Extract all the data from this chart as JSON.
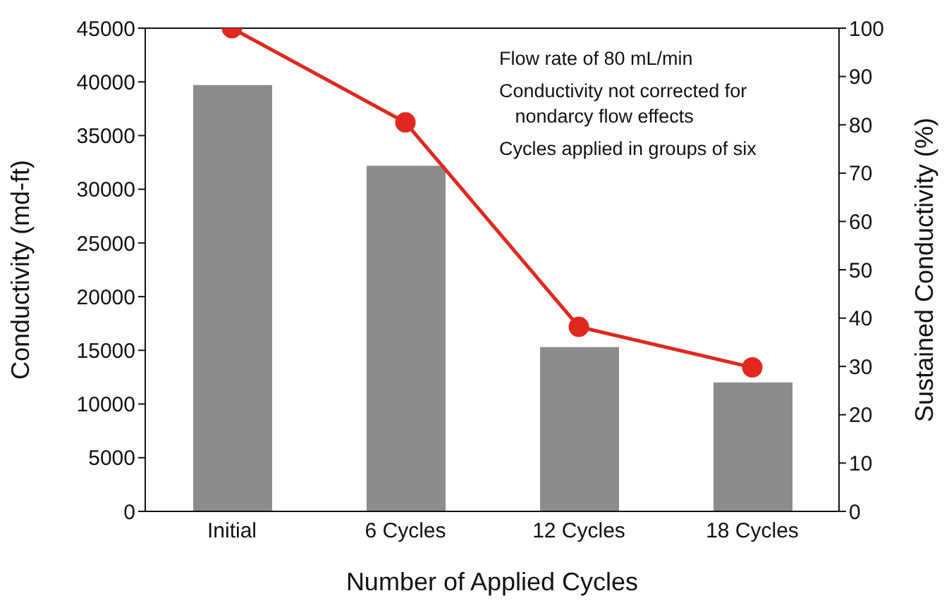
{
  "chart_data": {
    "type": "bar",
    "xlabel": "Number of Applied Cycles",
    "ylabel": "Conductivity (md-ft)",
    "y2label": "Sustained Conductivity (%)",
    "categories": [
      "Initial",
      "6 Cycles",
      "12 Cycles",
      "18 Cycles"
    ],
    "series": [
      {
        "color": "#8c8c8c",
        "values": [
          39700,
          32200,
          15300,
          12000
        ]
      },
      {
        "type": "line",
        "axis": "y2",
        "color": "#e0281e",
        "marker": "circle",
        "values": [
          100,
          80.5,
          38.2,
          29.8
        ]
      }
    ],
    "ylim": [
      0,
      45000
    ],
    "yticks": [
      0,
      5000,
      10000,
      15000,
      20000,
      25000,
      30000,
      35000,
      40000,
      45000
    ],
    "y2lim": [
      0,
      100
    ],
    "y2ticks": [
      0,
      10,
      20,
      30,
      40,
      50,
      60,
      70,
      80,
      90,
      100
    ],
    "grid": false,
    "legend": false,
    "annotations": [
      "Flow rate of 80 mL/min",
      "Conductivity not corrected for\n   nondarcy flow effects",
      "Cycles applied in groups of six"
    ]
  }
}
